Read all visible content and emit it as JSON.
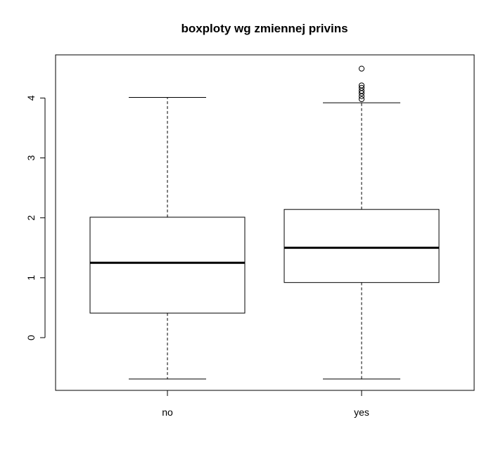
{
  "chart_data": {
    "type": "boxplot",
    "title": "boxploty wg zmiennej privins",
    "xlabel": "",
    "ylabel": "",
    "categories": [
      "no",
      "yes"
    ],
    "ylim": [
      -0.88,
      4.72
    ],
    "yticks": [
      0,
      1,
      2,
      3,
      4
    ],
    "grid": false,
    "boxes": [
      {
        "category": "no",
        "whisker_low": -0.69,
        "q1": 0.41,
        "median": 1.25,
        "q3": 2.01,
        "whisker_high": 4.01,
        "outliers": []
      },
      {
        "category": "yes",
        "whisker_low": -0.69,
        "q1": 0.92,
        "median": 1.5,
        "q3": 2.14,
        "whisker_high": 3.92,
        "outliers": [
          3.98,
          4.03,
          4.08,
          4.12,
          4.17,
          4.21,
          4.49
        ]
      }
    ]
  }
}
